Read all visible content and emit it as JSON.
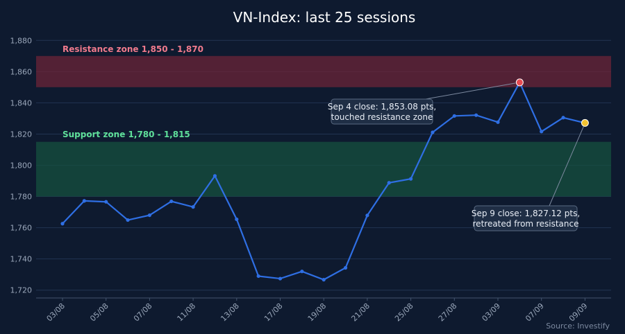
{
  "colors": {
    "background": "#0e1a2f",
    "line": "#2f6fe4",
    "resistance": "#6b2438",
    "resistance_label": "#f07a8c",
    "support": "#15503f",
    "support_label": "#5fe09a",
    "highlight_high": "#e64a52",
    "highlight_last": "#f2c230"
  },
  "chart_data": {
    "type": "line",
    "title": "VN-Index: last 25 sessions",
    "xlabel": "",
    "ylabel": "",
    "source": "Source: Investify",
    "ylim": [
      1715,
      1885
    ],
    "yticks": [
      1720,
      1740,
      1760,
      1780,
      1800,
      1820,
      1840,
      1860,
      1880
    ],
    "ytick_labels": [
      "1,720",
      "1,740",
      "1,760",
      "1,780",
      "1,800",
      "1,820",
      "1,840",
      "1,860",
      "1,880"
    ],
    "x_tick_labels": [
      "03/08",
      "05/08",
      "07/08",
      "11/08",
      "13/08",
      "17/08",
      "19/08",
      "21/08",
      "25/08",
      "27/08",
      "03/09",
      "07/09",
      "09/09"
    ],
    "grid": true,
    "series": [
      {
        "values": [
          1762.6,
          1777.2,
          1776.6,
          1764.9,
          1768.0,
          1776.9,
          1773.3,
          1793.2,
          1765.4,
          1729.0,
          1727.4,
          1732.0,
          1726.7,
          1734.3,
          1767.9,
          1788.8,
          1791.3,
          1821.1,
          1831.6,
          1832.1,
          1827.6,
          1853.08,
          1821.6,
          1830.5,
          1827.12
        ]
      }
    ],
    "zones": [
      {
        "label": "Resistance zone 1,850 - 1,870",
        "from": 1850,
        "to": 1870
      },
      {
        "label": "Support zone 1,780 - 1,815",
        "from": 1780,
        "to": 1815
      }
    ],
    "annotations": [
      {
        "point_index": 21,
        "lines": [
          "Sep 4 close: 1,853.08 pts,",
          "touched resistance zone"
        ]
      },
      {
        "point_index": 24,
        "lines": [
          "Sep 9 close: 1,827.12 pts,",
          "retreated from resistance"
        ]
      }
    ]
  }
}
